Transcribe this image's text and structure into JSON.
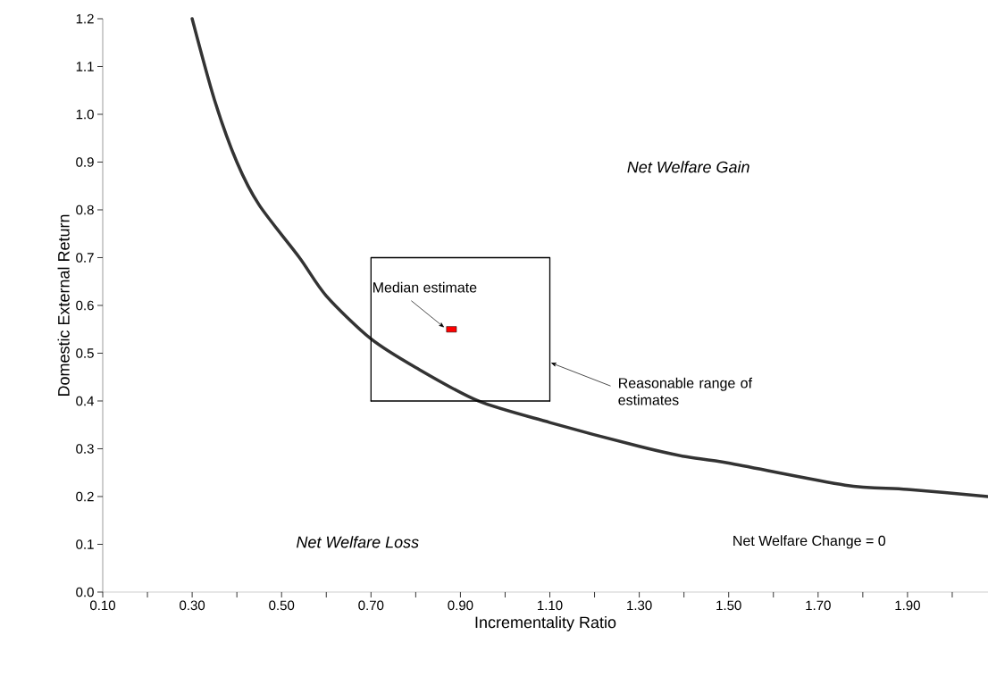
{
  "chart_data": {
    "type": "line",
    "xlabel": "Incrementality Ratio",
    "ylabel": "Domestic External Return",
    "xlim": [
      0.1,
      2.08
    ],
    "ylim": [
      0,
      1.2
    ],
    "xticks": [
      {
        "value": 0.1,
        "label": "0.10"
      },
      {
        "value": 0.2,
        "label": null
      },
      {
        "value": 0.3,
        "label": "0.30"
      },
      {
        "value": 0.4,
        "label": null
      },
      {
        "value": 0.5,
        "label": "0.50"
      },
      {
        "value": 0.6,
        "label": null
      },
      {
        "value": 0.7,
        "label": "0.70"
      },
      {
        "value": 0.8,
        "label": null
      },
      {
        "value": 0.9,
        "label": "0.90"
      },
      {
        "value": 1.0,
        "label": null
      },
      {
        "value": 1.1,
        "label": "1.10"
      },
      {
        "value": 1.2,
        "label": null
      },
      {
        "value": 1.3,
        "label": "1.30"
      },
      {
        "value": 1.4,
        "label": null
      },
      {
        "value": 1.5,
        "label": "1.50"
      },
      {
        "value": 1.6,
        "label": null
      },
      {
        "value": 1.7,
        "label": "1.70"
      },
      {
        "value": 1.8,
        "label": null
      },
      {
        "value": 1.9,
        "label": "1.90"
      },
      {
        "value": 2.0,
        "label": null
      }
    ],
    "yticks": [
      {
        "value": 0,
        "label": "0.0"
      },
      {
        "value": 0.1,
        "label": "0.1"
      },
      {
        "value": 0.2,
        "label": "0.2"
      },
      {
        "value": 0.3,
        "label": "0.3"
      },
      {
        "value": 0.4,
        "label": "0.4"
      },
      {
        "value": 0.5,
        "label": "0.5"
      },
      {
        "value": 0.6,
        "label": "0.6"
      },
      {
        "value": 0.7,
        "label": "0.7"
      },
      {
        "value": 0.8,
        "label": "0.8"
      },
      {
        "value": 0.9,
        "label": "0.9"
      },
      {
        "value": 1.0,
        "label": "1.0"
      },
      {
        "value": 1.1,
        "label": "1.1"
      },
      {
        "value": 1.2,
        "label": "1.2"
      }
    ],
    "grid": false,
    "line_style": "solid",
    "series": [
      {
        "name": "Net Welfare Change = 0",
        "color": "#333333",
        "x": [
          0.3,
          0.35,
          0.4,
          0.45,
          0.54,
          0.6,
          0.7,
          0.8,
          0.94,
          1.1,
          1.3,
          1.4,
          1.5,
          1.76,
          1.9,
          2.08
        ],
        "values": [
          1.2,
          1.03,
          0.9,
          0.81,
          0.7,
          0.62,
          0.53,
          0.47,
          0.4,
          0.355,
          0.305,
          0.284,
          0.27,
          0.224,
          0.215,
          0.2
        ]
      },
      {
        "color": "#000000",
        "x": [
          0.7,
          0.7,
          1.1,
          1.1
        ],
        "values": [
          0.4,
          0.7,
          0.7,
          0.4
        ]
      },
      {
        "color": "#000000",
        "x": [
          0.7,
          1.1
        ],
        "values": [
          0.4,
          0.4
        ]
      },
      {
        "type": "scatter",
        "marker": "square",
        "color": "#ff0000",
        "x": [
          0.88
        ],
        "values": [
          0.55
        ]
      }
    ],
    "annotations": [
      "Net Welfare Gain",
      "Net Welfare Loss",
      {
        "text": "Median estimate",
        "x": 0.88,
        "y": 0.55
      },
      {
        "text": "Reasonable range of estimates",
        "x": 1.1,
        "y": 0.48
      }
    ]
  }
}
